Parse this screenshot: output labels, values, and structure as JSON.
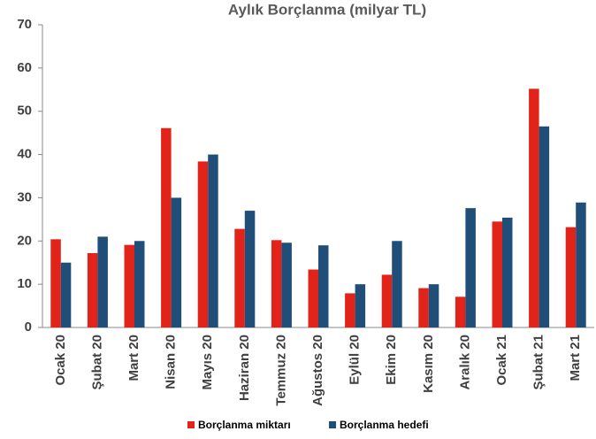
{
  "chart_data": {
    "type": "bar",
    "title": "Aylık Borçlanma (milyar TL)",
    "categories": [
      "Ocak 20",
      "Şubat 20",
      "Mart 20",
      "Nisan 20",
      "Mayıs 20",
      "Haziran 20",
      "Temmuz 20",
      "Ağustos 20",
      "Eylül 20",
      "Ekim 20",
      "Kasım 20",
      "Aralık 20",
      "Ocak 21",
      "Şubat 21",
      "Mart 21"
    ],
    "series": [
      {
        "name": "Borçlanma miktarı",
        "color": "#e2231a",
        "values": [
          20.4,
          17.2,
          19.1,
          46.1,
          38.4,
          22.8,
          20.2,
          13.4,
          7.9,
          12.2,
          9.1,
          7.1,
          24.5,
          55.2,
          23.2
        ]
      },
      {
        "name": "Borçlanma hedefi",
        "color": "#1f4e79",
        "values": [
          15,
          21,
          20,
          30,
          40,
          27,
          19.6,
          19,
          10,
          20,
          10,
          27.6,
          25.4,
          46.5,
          28.9
        ]
      }
    ],
    "ylim": [
      0,
      70
    ],
    "yticks": [
      0,
      10,
      20,
      30,
      40,
      50,
      60,
      70
    ],
    "grid": false
  }
}
